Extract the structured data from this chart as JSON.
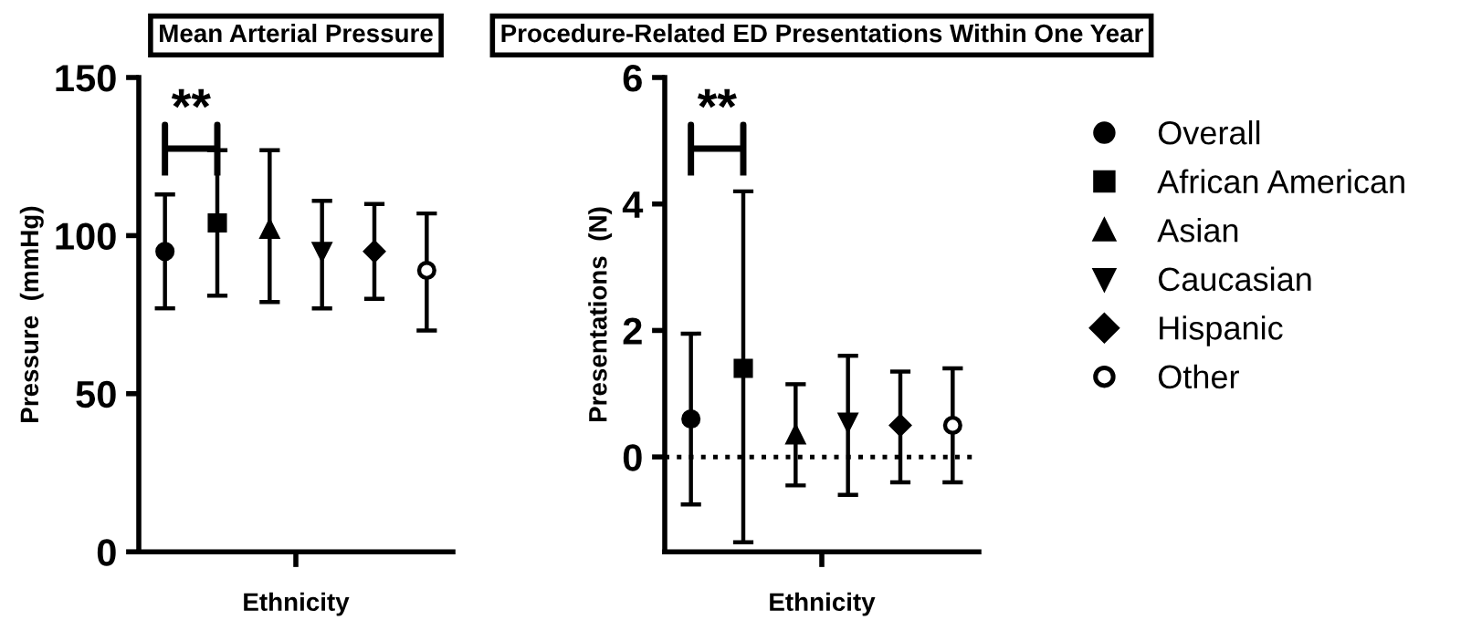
{
  "chart_data": [
    {
      "type": "scatter",
      "title": "Mean Arterial Pressure",
      "xlabel": "Ethnicity",
      "ylabel": "Pressure  (mmHg)",
      "categories": [
        null,
        null,
        null,
        null,
        null,
        null
      ],
      "series": [
        {
          "color": "#000000",
          "marker": "circle",
          "values": [
            95,
            null,
            null,
            null,
            null,
            null
          ],
          "errors": [
            [
              77,
              113
            ],
            null,
            null,
            null,
            null,
            null
          ]
        },
        {
          "color": "#000000",
          "marker": "square",
          "values": [
            null,
            104,
            null,
            null,
            null,
            null
          ],
          "errors": [
            null,
            [
              81,
              127
            ],
            null,
            null,
            null,
            null
          ]
        },
        {
          "color": "#000000",
          "marker": "triangle",
          "values": [
            null,
            null,
            102,
            null,
            null,
            null
          ],
          "errors": [
            null,
            null,
            [
              79,
              127
            ],
            null,
            null,
            null
          ]
        },
        {
          "color": "#000000",
          "marker": "triangle_down",
          "values": [
            null,
            null,
            null,
            95,
            null,
            null
          ],
          "errors": [
            null,
            null,
            null,
            [
              77,
              111
            ],
            null,
            null
          ]
        },
        {
          "color": "#000000",
          "marker": "diamond",
          "values": [
            null,
            null,
            null,
            null,
            95,
            null
          ],
          "errors": [
            null,
            null,
            null,
            null,
            [
              80,
              110
            ],
            null
          ]
        },
        {
          "color": "#000000",
          "marker": "circle_open",
          "values": [
            null,
            null,
            null,
            null,
            null,
            89
          ],
          "errors": [
            null,
            null,
            null,
            null,
            null,
            [
              70,
              107
            ]
          ]
        }
      ],
      "ylim": [
        0,
        150
      ],
      "yticks": [
        0,
        50,
        100,
        150
      ],
      "tick_labels": "y",
      "grid": false,
      "legend": false,
      "annotations": [
        "**"
      ]
    },
    {
      "type": "scatter",
      "title": "Procedure-Related ED Presentations Within One Year",
      "xlabel": "Ethnicity",
      "ylabel": "Presentations  (N)",
      "categories": [
        null,
        null,
        null,
        null,
        null,
        null
      ],
      "series": [
        {
          "name": "Overall",
          "color": "#000000",
          "marker": "circle",
          "values": [
            0.6,
            null,
            null,
            null,
            null,
            null
          ],
          "errors": [
            [
              -0.75,
              1.95
            ],
            null,
            null,
            null,
            null,
            null
          ]
        },
        {
          "name": "African American",
          "color": "#000000",
          "marker": "square",
          "values": [
            null,
            1.4,
            null,
            null,
            null,
            null
          ],
          "errors": [
            null,
            [
              -1.35,
              4.2
            ],
            null,
            null,
            null,
            null
          ]
        },
        {
          "name": "Asian",
          "color": "#000000",
          "marker": "triangle",
          "values": [
            null,
            null,
            0.35,
            null,
            null,
            null
          ],
          "errors": [
            null,
            null,
            [
              -0.45,
              1.15
            ],
            null,
            null,
            null
          ]
        },
        {
          "name": "Caucasian",
          "color": "#000000",
          "marker": "triangle_down",
          "values": [
            null,
            null,
            null,
            0.55,
            null,
            null
          ],
          "errors": [
            null,
            null,
            null,
            [
              -0.6,
              1.6
            ],
            null,
            null
          ]
        },
        {
          "name": "Hispanic",
          "color": "#000000",
          "marker": "diamond",
          "values": [
            null,
            null,
            null,
            null,
            0.5,
            null
          ],
          "errors": [
            null,
            null,
            null,
            null,
            [
              -0.4,
              1.35
            ],
            null
          ]
        },
        {
          "name": "Other",
          "color": "#000000",
          "marker": "circle_open",
          "values": [
            null,
            null,
            null,
            null,
            null,
            0.5
          ],
          "errors": [
            null,
            null,
            null,
            null,
            null,
            [
              -0.4,
              1.4
            ]
          ]
        }
      ],
      "ylim": [
        -1.5,
        6
      ],
      "yticks": [
        0,
        2,
        4,
        6
      ],
      "tick_labels": "y",
      "grid": false,
      "legend": "right",
      "ref_lines": [
        {
          "axis": "y",
          "value": 0,
          "line_style": "dotted",
          "color": "#000000"
        }
      ],
      "annotations": [
        "**"
      ]
    }
  ]
}
